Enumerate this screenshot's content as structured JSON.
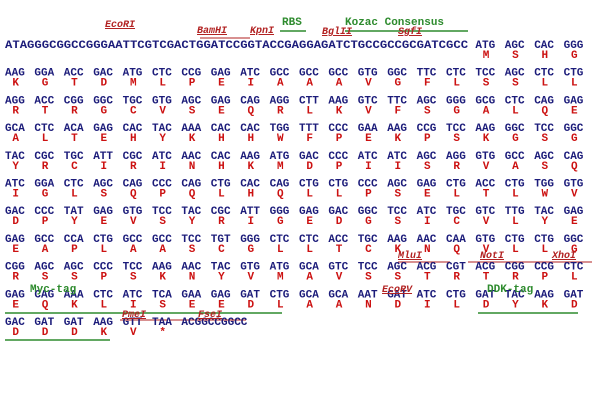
{
  "rows": [
    {
      "prefix": "ATAGGGCGGCCGGGAATTCGTCGACTGGATCCGGTACCGAGGAGATCTGCCGCCGCGATCGCC",
      "codons": [
        "ATG",
        "AGC",
        "CAC",
        "GGG"
      ],
      "aminos": [
        "M",
        "S",
        "H",
        "G"
      ],
      "notes": [
        {
          "text": "EcoRI",
          "color": "#b22222"
        },
        {
          "text": "BamHI",
          "color": "#b22222"
        },
        {
          "text": "KpnI",
          "color": "#b22222"
        },
        {
          "text": "RBS",
          "color": "#2e8b2e"
        },
        {
          "text": "BglII",
          "color": "#b22222"
        },
        {
          "text": "Kozac Consensus",
          "color": "#2e8b2e"
        },
        {
          "text": "SgfI",
          "color": "#b22222"
        }
      ]
    },
    {
      "codons": [
        "AAG",
        "GGA",
        "ACC",
        "GAC",
        "ATG",
        "CTC",
        "CCG",
        "GAG",
        "ATC",
        "GCC",
        "GCC",
        "GCC",
        "GTG",
        "GGC",
        "TTC",
        "CTC",
        "TCC",
        "AGC",
        "CTC",
        "CTG"
      ],
      "aminos": [
        "K",
        "G",
        "T",
        "D",
        "M",
        "L",
        "P",
        "E",
        "I",
        "A",
        "A",
        "A",
        "V",
        "G",
        "F",
        "L",
        "S",
        "S",
        "L",
        "L"
      ]
    },
    {
      "codons": [
        "AGG",
        "ACC",
        "CGG",
        "GGC",
        "TGC",
        "GTG",
        "AGC",
        "GAG",
        "CAG",
        "AGG",
        "CTT",
        "AAG",
        "GTC",
        "TTC",
        "AGC",
        "GGG",
        "GCG",
        "CTC",
        "CAG",
        "GAG"
      ],
      "aminos": [
        "R",
        "T",
        "R",
        "G",
        "C",
        "V",
        "S",
        "E",
        "Q",
        "R",
        "L",
        "K",
        "V",
        "F",
        "S",
        "G",
        "A",
        "L",
        "Q",
        "E"
      ]
    },
    {
      "codons": [
        "GCA",
        "CTC",
        "ACA",
        "GAG",
        "CAC",
        "TAC",
        "AAA",
        "CAC",
        "CAC",
        "TGG",
        "TTT",
        "CCC",
        "GAA",
        "AAG",
        "CCG",
        "TCC",
        "AAG",
        "GGC",
        "TCC",
        "GGC"
      ],
      "aminos": [
        "A",
        "L",
        "T",
        "E",
        "H",
        "Y",
        "K",
        "H",
        "H",
        "W",
        "F",
        "P",
        "E",
        "K",
        "P",
        "S",
        "K",
        "G",
        "S",
        "G"
      ]
    },
    {
      "codons": [
        "TAC",
        "CGC",
        "TGC",
        "ATT",
        "CGC",
        "ATC",
        "AAC",
        "CAC",
        "AAG",
        "ATG",
        "GAC",
        "CCC",
        "ATC",
        "ATC",
        "AGC",
        "AGG",
        "GTG",
        "GCC",
        "AGC",
        "CAG"
      ],
      "aminos": [
        "Y",
        "R",
        "C",
        "I",
        "R",
        "I",
        "N",
        "H",
        "K",
        "M",
        "D",
        "P",
        "I",
        "I",
        "S",
        "R",
        "V",
        "A",
        "S",
        "Q"
      ]
    },
    {
      "codons": [
        "ATC",
        "GGA",
        "CTC",
        "AGC",
        "CAG",
        "CCC",
        "CAG",
        "CTG",
        "CAC",
        "CAG",
        "CTG",
        "CTG",
        "CCC",
        "AGC",
        "GAG",
        "CTG",
        "ACC",
        "CTG",
        "TGG",
        "GTG"
      ],
      "aminos": [
        "I",
        "G",
        "L",
        "S",
        "Q",
        "P",
        "Q",
        "L",
        "H",
        "Q",
        "L",
        "L",
        "P",
        "S",
        "E",
        "L",
        "T",
        "L",
        "W",
        "V"
      ]
    },
    {
      "codons": [
        "GAC",
        "CCC",
        "TAT",
        "GAG",
        "GTG",
        "TCC",
        "TAC",
        "CGC",
        "ATT",
        "GGG",
        "GAG",
        "GAC",
        "GGC",
        "TCC",
        "ATC",
        "TGC",
        "GTC",
        "TTG",
        "TAC",
        "GAG"
      ],
      "aminos": [
        "D",
        "P",
        "Y",
        "E",
        "V",
        "S",
        "Y",
        "R",
        "I",
        "G",
        "E",
        "D",
        "G",
        "S",
        "I",
        "C",
        "V",
        "L",
        "Y",
        "E"
      ]
    },
    {
      "codons": [
        "GAG",
        "GCC",
        "CCA",
        "CTG",
        "GCC",
        "GCC",
        "TCC",
        "TGT",
        "GGG",
        "CTC",
        "CTC",
        "ACC",
        "TGC",
        "AAG",
        "AAC",
        "CAA",
        "GTG",
        "CTG",
        "CTG",
        "GGC"
      ],
      "aminos": [
        "E",
        "A",
        "P",
        "L",
        "A",
        "A",
        "S",
        "C",
        "G",
        "L",
        "L",
        "T",
        "C",
        "K",
        "N",
        "Q",
        "V",
        "L",
        "L",
        "G"
      ]
    },
    {
      "codons": [
        "CGG",
        "AGC",
        "AGC",
        "CCC",
        "TCC",
        "AAG",
        "AAC",
        "TAC",
        "GTG",
        "ATG",
        "GCA",
        "GTC",
        "TCC",
        "AGC",
        "ACG",
        "CGT",
        "ACG",
        "CGG",
        "CCG",
        "CTC"
      ],
      "aminos": [
        "R",
        "S",
        "S",
        "P",
        "S",
        "K",
        "N",
        "Y",
        "V",
        "M",
        "A",
        "V",
        "S",
        "S",
        "T",
        "R",
        "T",
        "R",
        "P",
        "L"
      ],
      "notes": [
        {
          "text": "MluI",
          "color": "#b22222"
        },
        {
          "text": "NotI",
          "color": "#b22222"
        },
        {
          "text": "XhoI",
          "color": "#b22222"
        }
      ]
    },
    {
      "codons": [
        "GAG",
        "CAG",
        "AAA",
        "CTC",
        "ATC",
        "TCA",
        "GAA",
        "GAG",
        "GAT",
        "CTG",
        "GCA",
        "GCA",
        "AAT",
        "GAT",
        "ATC",
        "CTG",
        "GAT",
        "TAC",
        "AAG",
        "GAT"
      ],
      "aminos": [
        "E",
        "Q",
        "K",
        "L",
        "I",
        "S",
        "E",
        "E",
        "D",
        "L",
        "A",
        "A",
        "N",
        "D",
        "I",
        "L",
        "D",
        "Y",
        "K",
        "D"
      ],
      "notes": [
        {
          "text": "Myc-tag",
          "color": "#2e8b2e"
        },
        {
          "text": "EcoRV",
          "color": "#b22222"
        },
        {
          "text": "DDK-tag",
          "color": "#2e8b2e"
        }
      ]
    },
    {
      "codons": [
        "GAC",
        "GAT",
        "GAT",
        "AAG",
        "GTT",
        "TAA"
      ],
      "suffix": "ACGGCCGGCC",
      "aminos": [
        "D",
        "D",
        "D",
        "K",
        "V",
        "*"
      ],
      "notes": [
        {
          "text": "PmeI",
          "color": "#b22222"
        },
        {
          "text": "FseI",
          "color": "#b22222"
        }
      ]
    }
  ]
}
